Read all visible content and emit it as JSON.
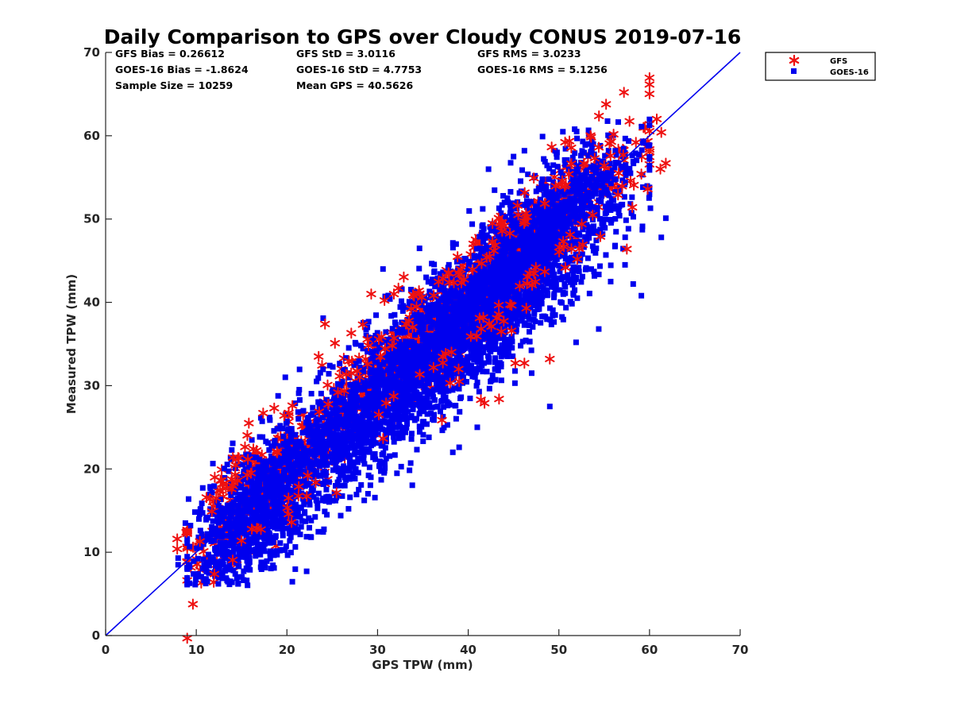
{
  "chart_data": {
    "type": "scatter",
    "title": "Daily Comparison to GPS over Cloudy CONUS 2019-07-16",
    "xlabel": "GPS TPW (mm)",
    "ylabel": "Measured TPW (mm)",
    "xlim": [
      0,
      70
    ],
    "ylim": [
      0,
      70
    ],
    "xticks": [
      "0",
      "10",
      "20",
      "30",
      "40",
      "50",
      "60",
      "70"
    ],
    "yticks": [
      "0",
      "10",
      "20",
      "30",
      "40",
      "50",
      "60",
      "70"
    ],
    "grid": false,
    "legend_position": "outside top-right",
    "stats": [
      [
        "GFS Bias = 0.26612",
        "GFS StD = 3.0116",
        "GFS RMS = 3.0233"
      ],
      [
        "GOES-16 Bias = -1.8624",
        "GOES-16 StD = 4.7753",
        "GOES-16 RMS = 5.1256"
      ],
      [
        "Sample Size = 10259",
        "Mean GPS = 40.5626"
      ]
    ],
    "reference_line": {
      "x": [
        0,
        70
      ],
      "y": [
        0,
        70
      ],
      "color": "#0000ee"
    },
    "series": [
      {
        "name": "GFS",
        "marker": "asterisk",
        "color": "#ee1111",
        "note": "dense cloud of ~10259 points centered on the 1:1 line; notable points listed",
        "points": [
          [
            7.9,
            11.6
          ],
          [
            7.9,
            10.4
          ],
          [
            8.9,
            12.4
          ],
          [
            10.4,
            11.3
          ],
          [
            11.5,
            16.4
          ],
          [
            12.2,
            16.5
          ],
          [
            12.8,
            18.6
          ],
          [
            14.3,
            19.3
          ],
          [
            14.7,
            21.3
          ],
          [
            15.8,
            25.5
          ],
          [
            16.3,
            22.4
          ],
          [
            18.6,
            27.3
          ],
          [
            19.7,
            26.4
          ],
          [
            20.6,
            27.6
          ],
          [
            23.5,
            33.5
          ],
          [
            24.2,
            37.4
          ],
          [
            25.3,
            35.1
          ],
          [
            27.1,
            36.3
          ],
          [
            29.0,
            34.8
          ],
          [
            29.3,
            41.0
          ],
          [
            31.8,
            41.0
          ],
          [
            32.3,
            41.7
          ],
          [
            33.9,
            40.9
          ],
          [
            38.0,
            30.3
          ],
          [
            39.0,
            30.5
          ],
          [
            41.4,
            28.3
          ],
          [
            41.8,
            27.9
          ],
          [
            43.4,
            28.4
          ],
          [
            45.2,
            32.7
          ],
          [
            46.2,
            32.7
          ],
          [
            49.0,
            33.2
          ],
          [
            54.4,
            58.6
          ],
          [
            55.0,
            56.4
          ],
          [
            55.7,
            57.6
          ],
          [
            57.1,
            57.7
          ],
          [
            57.5,
            46.4
          ],
          [
            58.5,
            59.2
          ],
          [
            59.1,
            55.4
          ],
          [
            59.8,
            53.6
          ],
          [
            60.8,
            62.0
          ],
          [
            61.3,
            60.4
          ],
          [
            61.2,
            56.0
          ],
          [
            61.8,
            56.7
          ],
          [
            58.1,
            51.4
          ],
          [
            56.6,
            55.5
          ]
        ]
      },
      {
        "name": "GOES-16",
        "marker": "square",
        "color": "#0000ee",
        "note": "dense cloud of ~10259 points, generally below the 1:1 line; notable points listed",
        "points": [
          [
            8.0,
            8.5
          ],
          [
            8.0,
            9.3
          ],
          [
            8.8,
            13.5
          ],
          [
            10.2,
            7.4
          ],
          [
            11.4,
            7.5
          ],
          [
            12.2,
            8.1
          ],
          [
            14.3,
            7.4
          ],
          [
            14.7,
            8.3
          ],
          [
            24.0,
            38.1
          ],
          [
            30.6,
            44.0
          ],
          [
            38.3,
            22.0
          ],
          [
            39.0,
            22.6
          ],
          [
            41.0,
            25.0
          ],
          [
            42.0,
            45.6
          ],
          [
            44.0,
            52.0
          ],
          [
            45.0,
            57.5
          ],
          [
            46.2,
            58.2
          ],
          [
            48.2,
            59.9
          ],
          [
            49.0,
            27.5
          ],
          [
            51.9,
            35.2
          ],
          [
            54.4,
            36.8
          ],
          [
            57.3,
            44.5
          ],
          [
            58.2,
            42.2
          ],
          [
            59.1,
            40.8
          ],
          [
            60.1,
            51.3
          ],
          [
            61.3,
            47.8
          ],
          [
            61.8,
            50.1
          ],
          [
            53.8,
            59.0
          ],
          [
            41.6,
            48.2
          ],
          [
            47.0,
            31.5
          ]
        ]
      }
    ]
  }
}
